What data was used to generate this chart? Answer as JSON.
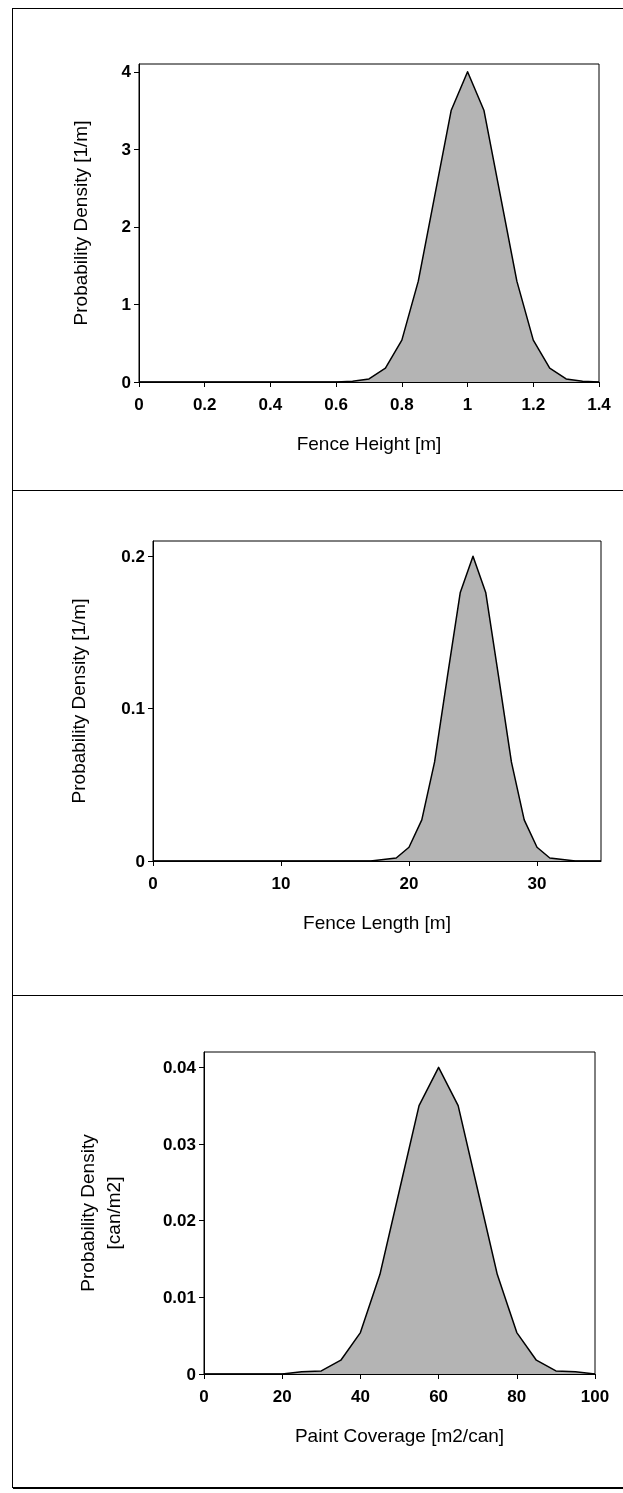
{
  "chart_data": [
    {
      "type": "area",
      "xlabel": "Fence Height [m]",
      "ylabel": "Probability Density [1/m]",
      "color": "#b4b4b4",
      "x": [
        0,
        0.6,
        0.65,
        0.7,
        0.75,
        0.8,
        0.85,
        0.9,
        0.95,
        1,
        1.05,
        1.1,
        1.15,
        1.2,
        1.25,
        1.3,
        1.35,
        1.4
      ],
      "values": [
        0,
        0,
        0.01,
        0.04,
        0.18,
        0.54,
        1.3,
        2.4,
        3.5,
        4,
        3.5,
        2.4,
        1.3,
        0.54,
        0.18,
        0.04,
        0.01,
        0
      ],
      "xlim": [
        0,
        1.4
      ],
      "ylim": [
        0,
        4.1
      ],
      "xticks": [
        0,
        0.2,
        0.4,
        0.6,
        0.8,
        1,
        1.2,
        1.4
      ],
      "yticks": [
        0,
        1,
        2,
        3,
        4
      ]
    },
    {
      "type": "area",
      "xlabel": "Fence Length [m]",
      "ylabel": "Probability Density [1/m]",
      "color": "#b4b4b4",
      "x": [
        0,
        17,
        18,
        19,
        20,
        21,
        22,
        23,
        24,
        25,
        26,
        27,
        28,
        29,
        30,
        31,
        32,
        33,
        35
      ],
      "values": [
        0,
        0,
        0.001,
        0.002,
        0.009,
        0.027,
        0.065,
        0.121,
        0.176,
        0.2,
        0.176,
        0.121,
        0.065,
        0.027,
        0.009,
        0.002,
        0.001,
        0,
        0
      ],
      "xlim": [
        0,
        35
      ],
      "ylim": [
        0,
        0.21
      ],
      "xticks": [
        0,
        10,
        20,
        30
      ],
      "yticks": [
        0,
        0.1,
        0.2
      ]
    },
    {
      "type": "area",
      "xlabel": "Paint Coverage [m2/can]",
      "ylabel": "Probability Density\n[can/m2]",
      "color": "#b4b4b4",
      "x": [
        0,
        20,
        25,
        30,
        35,
        40,
        45,
        50,
        55,
        60,
        65,
        70,
        75,
        80,
        85,
        90,
        95,
        100
      ],
      "values": [
        0,
        0,
        0.0003,
        0.0004,
        0.0018,
        0.0054,
        0.013,
        0.024,
        0.035,
        0.04,
        0.035,
        0.024,
        0.013,
        0.0054,
        0.0018,
        0.0004,
        0.0003,
        0
      ],
      "xlim": [
        0,
        100
      ],
      "ylim": [
        0,
        0.042
      ],
      "xticks": [
        0,
        20,
        40,
        60,
        80,
        100
      ],
      "yticks": [
        0,
        0.01,
        0.02,
        0.03,
        0.04
      ]
    }
  ]
}
